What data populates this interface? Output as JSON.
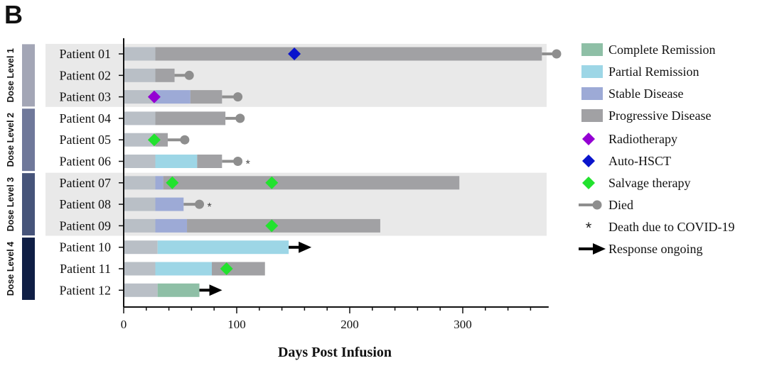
{
  "panel_label": "B",
  "chart_data": {
    "type": "swimmer",
    "xlabel": "Days Post Infusion",
    "xlim": [
      0,
      376
    ],
    "xticks": [
      0,
      100,
      200,
      300
    ],
    "patients": [
      {
        "name": "Patient 01",
        "segments": [
          {
            "status": "Baseline",
            "start": 0,
            "end": 28
          },
          {
            "status": "Progressive Disease",
            "start": 28,
            "end": 370
          }
        ],
        "end": 383,
        "died": true,
        "covid": false,
        "ongoing": false,
        "events": [
          {
            "type": "Auto-HSCT",
            "day": 151
          }
        ]
      },
      {
        "name": "Patient 02",
        "segments": [
          {
            "status": "Baseline",
            "start": 0,
            "end": 28
          },
          {
            "status": "Progressive Disease",
            "start": 28,
            "end": 45
          }
        ],
        "end": 58,
        "died": true,
        "covid": false,
        "ongoing": false,
        "events": []
      },
      {
        "name": "Patient 03",
        "segments": [
          {
            "status": "Baseline",
            "start": 0,
            "end": 28
          },
          {
            "status": "Stable Disease",
            "start": 28,
            "end": 59
          },
          {
            "status": "Progressive Disease",
            "start": 59,
            "end": 87
          }
        ],
        "end": 101,
        "died": true,
        "covid": false,
        "ongoing": false,
        "events": [
          {
            "type": "Radiotherapy",
            "day": 27
          }
        ]
      },
      {
        "name": "Patient 04",
        "segments": [
          {
            "status": "Baseline",
            "start": 0,
            "end": 28
          },
          {
            "status": "Progressive Disease",
            "start": 28,
            "end": 90
          }
        ],
        "end": 103,
        "died": true,
        "covid": false,
        "ongoing": false,
        "events": []
      },
      {
        "name": "Patient 05",
        "segments": [
          {
            "status": "Baseline",
            "start": 0,
            "end": 28
          },
          {
            "status": "Progressive Disease",
            "start": 28,
            "end": 39
          }
        ],
        "end": 54,
        "died": true,
        "covid": false,
        "ongoing": false,
        "events": [
          {
            "type": "Salvage therapy",
            "day": 27
          }
        ]
      },
      {
        "name": "Patient 06",
        "segments": [
          {
            "status": "Baseline",
            "start": 0,
            "end": 28
          },
          {
            "status": "Partial Remission",
            "start": 28,
            "end": 65
          },
          {
            "status": "Progressive Disease",
            "start": 65,
            "end": 87
          }
        ],
        "end": 101,
        "died": true,
        "covid": true,
        "ongoing": false,
        "events": []
      },
      {
        "name": "Patient 07",
        "segments": [
          {
            "status": "Baseline",
            "start": 0,
            "end": 28
          },
          {
            "status": "Stable Disease",
            "start": 28,
            "end": 35
          },
          {
            "status": "Progressive Disease",
            "start": 35,
            "end": 297
          }
        ],
        "died": false,
        "covid": false,
        "ongoing": false,
        "events": [
          {
            "type": "Salvage therapy",
            "day": 43
          },
          {
            "type": "Salvage therapy",
            "day": 131
          }
        ]
      },
      {
        "name": "Patient 08",
        "segments": [
          {
            "status": "Baseline",
            "start": 0,
            "end": 28
          },
          {
            "status": "Stable Disease",
            "start": 28,
            "end": 53
          }
        ],
        "end": 67,
        "died": true,
        "covid": true,
        "ongoing": false,
        "events": []
      },
      {
        "name": "Patient 09",
        "segments": [
          {
            "status": "Baseline",
            "start": 0,
            "end": 28
          },
          {
            "status": "Stable Disease",
            "start": 28,
            "end": 56
          },
          {
            "status": "Progressive Disease",
            "start": 56,
            "end": 227
          }
        ],
        "died": false,
        "covid": false,
        "ongoing": false,
        "events": [
          {
            "type": "Salvage therapy",
            "day": 131
          }
        ]
      },
      {
        "name": "Patient 10",
        "segments": [
          {
            "status": "Baseline",
            "start": 0,
            "end": 30
          },
          {
            "status": "Partial Remission",
            "start": 30,
            "end": 146
          }
        ],
        "died": false,
        "covid": false,
        "ongoing": true,
        "events": []
      },
      {
        "name": "Patient 11",
        "segments": [
          {
            "status": "Baseline",
            "start": 0,
            "end": 28
          },
          {
            "status": "Partial Remission",
            "start": 28,
            "end": 78
          },
          {
            "status": "Progressive Disease",
            "start": 78,
            "end": 125
          }
        ],
        "died": false,
        "covid": false,
        "ongoing": false,
        "events": [
          {
            "type": "Salvage therapy",
            "day": 91
          }
        ]
      },
      {
        "name": "Patient 12",
        "segments": [
          {
            "status": "Baseline",
            "start": 0,
            "end": 30
          },
          {
            "status": "Complete Remission",
            "start": 30,
            "end": 67
          }
        ],
        "died": false,
        "covid": false,
        "ongoing": true,
        "events": []
      }
    ],
    "dose_levels": [
      {
        "label": "Dose Level 1",
        "first": 0,
        "last": 2,
        "color": "#a3a6b6",
        "shaded": true
      },
      {
        "label": "Dose Level 2",
        "first": 3,
        "last": 5,
        "color": "#6f789a",
        "shaded": false
      },
      {
        "label": "Dose Level 3",
        "first": 6,
        "last": 8,
        "color": "#46547a",
        "shaded": true
      },
      {
        "label": "Dose Level 4",
        "first": 9,
        "last": 11,
        "color": "#0f1e45",
        "shaded": false
      }
    ],
    "status_colors": {
      "Baseline": "#b9bfc6",
      "Complete Remission": "#8ebfa6",
      "Partial Remission": "#9dd6e6",
      "Stable Disease": "#9daad6",
      "Progressive Disease": "#a1a1a4"
    },
    "event_colors": {
      "Radiotherapy": "#9400d3",
      "Auto-HSCT": "#0a14cc",
      "Salvage therapy": "#22e22e"
    },
    "legend": [
      {
        "label": "Complete Remission",
        "kind": "box",
        "color": "#8ebfa6"
      },
      {
        "label": "Partial Remission",
        "kind": "box",
        "color": "#9dd6e6"
      },
      {
        "label": "Stable Disease",
        "kind": "box",
        "color": "#9daad6"
      },
      {
        "label": "Progressive Disease",
        "kind": "box",
        "color": "#a1a1a4"
      },
      {
        "label": "Radiotherapy",
        "kind": "diamond",
        "color": "#9400d3"
      },
      {
        "label": "Auto-HSCT",
        "kind": "diamond",
        "color": "#0a14cc"
      },
      {
        "label": "Salvage therapy",
        "kind": "diamond",
        "color": "#22e22e"
      },
      {
        "label": "Died",
        "kind": "died",
        "color": "#8e8e8e"
      },
      {
        "label": "Death due to COVID-19",
        "kind": "star",
        "color": "#222222"
      },
      {
        "label": "Response ongoing",
        "kind": "arrow",
        "color": "#000000"
      }
    ],
    "covid_marker": "*",
    "shade_color": "#e9e9e9"
  }
}
